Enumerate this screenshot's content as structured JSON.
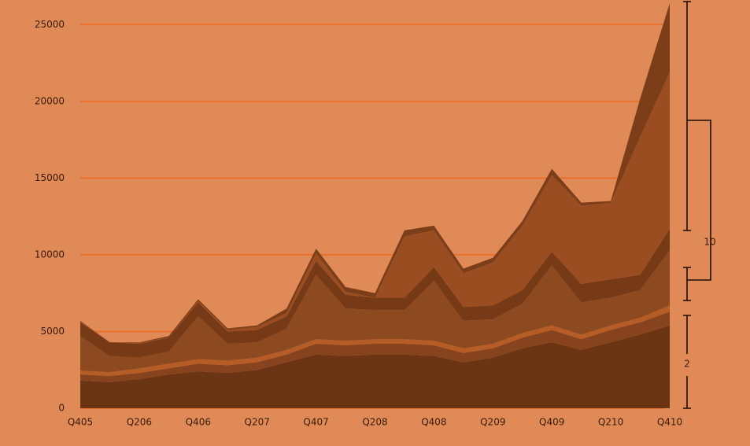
{
  "chart_data": {
    "type": "stacked_area",
    "categories": [
      "Q405",
      null,
      "Q206",
      null,
      "Q406",
      null,
      "Q207",
      null,
      "Q407",
      null,
      "Q208",
      null,
      "Q408",
      null,
      "Q209",
      null,
      "Q409",
      null,
      "Q210",
      null,
      "Q410"
    ],
    "series": [
      {
        "color": "#6b3514",
        "values": [
          1800,
          1700,
          1900,
          2200,
          2400,
          2300,
          2500,
          3000,
          3500,
          3400,
          3500,
          3500,
          3400,
          3000,
          3300,
          3900,
          4300,
          3800,
          4300,
          4800,
          5400
        ]
      },
      {
        "color": "#86431d",
        "values": [
          400,
          400,
          400,
          400,
          500,
          500,
          500,
          500,
          700,
          700,
          700,
          700,
          700,
          600,
          600,
          700,
          800,
          700,
          800,
          800,
          900
        ]
      },
      {
        "color": "#b65d27",
        "values": [
          250,
          250,
          300,
          300,
          300,
          300,
          300,
          300,
          300,
          300,
          300,
          300,
          300,
          300,
          300,
          300,
          300,
          300,
          300,
          300,
          400
        ]
      },
      {
        "color": "#8d491f",
        "values": [
          2250,
          1050,
          700,
          800,
          2800,
          1100,
          1000,
          1400,
          4200,
          2100,
          1900,
          1900,
          3900,
          1800,
          1600,
          1900,
          3900,
          2100,
          1800,
          1800,
          3600
        ]
      },
      {
        "color": "#773a17",
        "values": [
          900,
          900,
          900,
          900,
          900,
          800,
          800,
          800,
          900,
          900,
          800,
          800,
          900,
          900,
          900,
          900,
          900,
          1200,
          1200,
          1000,
          1400
        ]
      },
      {
        "color": "#9a4d21",
        "values": [
          100,
          0,
          100,
          0,
          100,
          100,
          200,
          200,
          500,
          200,
          0,
          4000,
          2400,
          2200,
          2800,
          4200,
          5000,
          5100,
          5000,
          9000,
          10200
        ]
      },
      {
        "color": "#7c3d19",
        "values": [
          0,
          0,
          0,
          100,
          100,
          100,
          100,
          300,
          300,
          300,
          300,
          400,
          300,
          300,
          300,
          300,
          400,
          200,
          100,
          2500,
          4500
        ]
      }
    ],
    "ylim": [
      0,
      26500
    ],
    "yticks": [
      0,
      5000,
      10000,
      15000,
      20000,
      25000
    ],
    "grid": true,
    "annotations": [
      "10",
      "2"
    ]
  }
}
